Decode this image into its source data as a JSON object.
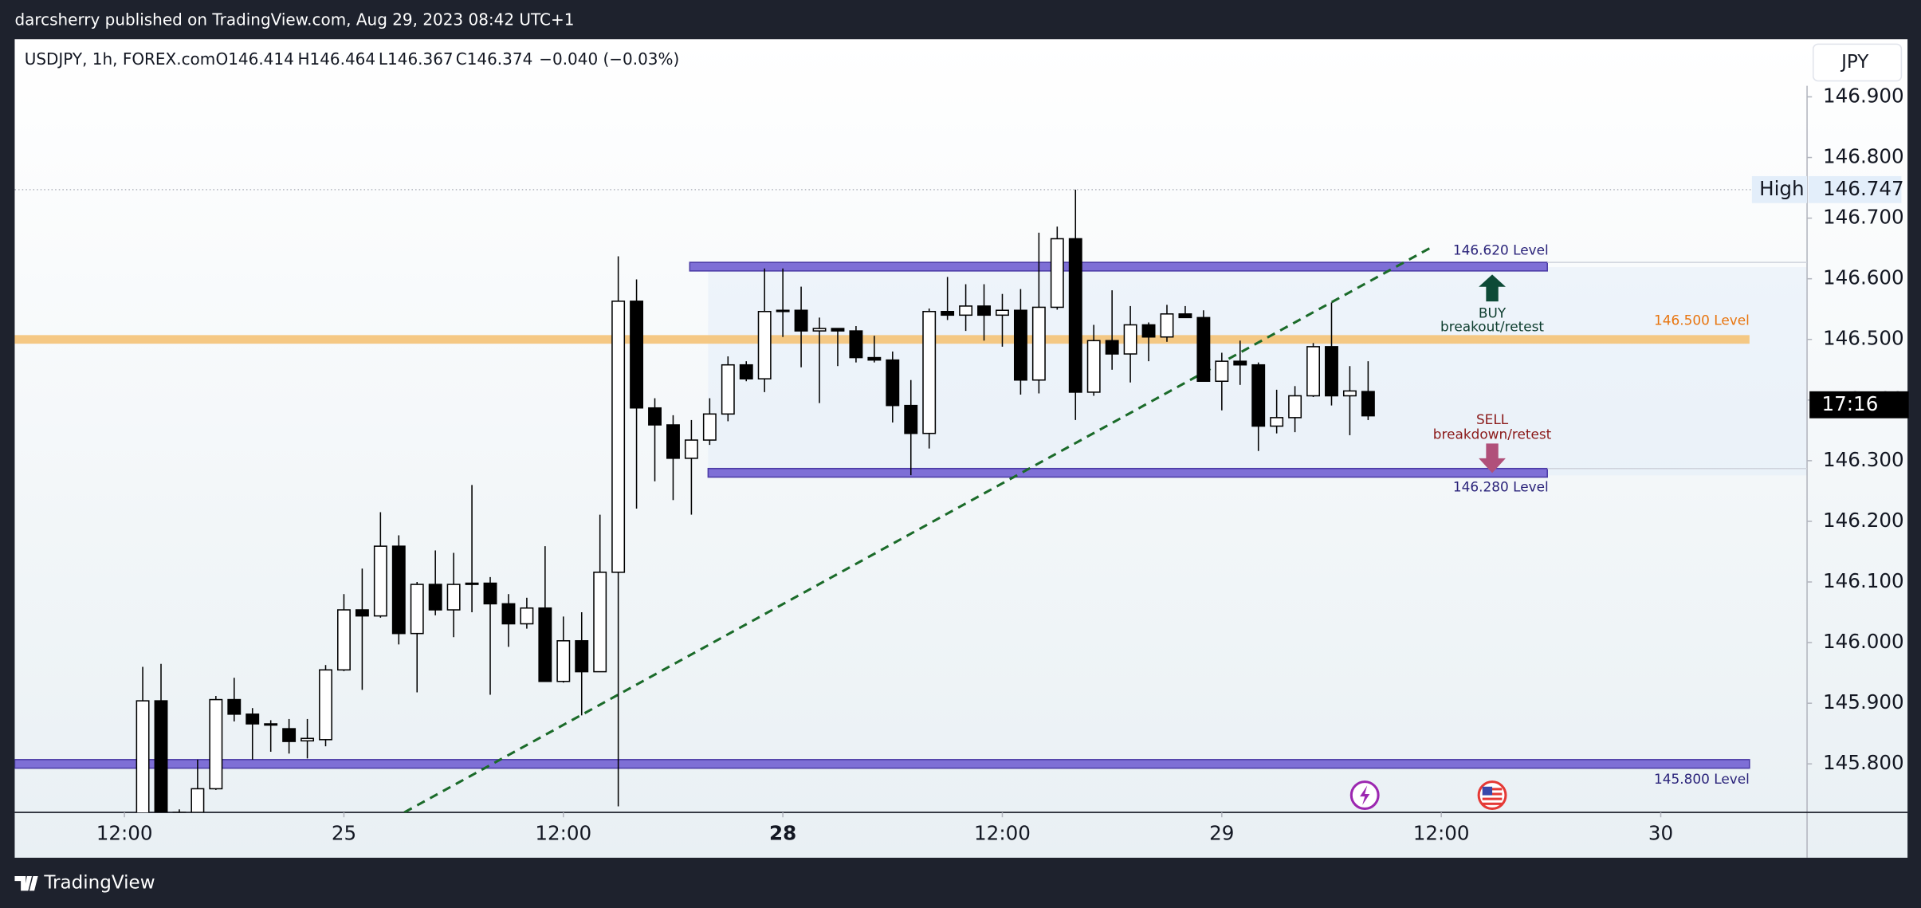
{
  "topbar": "darcsherry published on TradingView.com, Aug 29, 2023 08:42 UTC+1",
  "footer": "TradingView",
  "currency_button": "JPY",
  "chart_data": {
    "type": "candlestick",
    "legend": {
      "symbol": "USDJPY, 1h, FOREX.com",
      "open": "O146.414",
      "high": "H146.464",
      "low": "L146.367",
      "close": "C146.374",
      "change": "−0.040 (−0.03%)"
    },
    "x": [
      1,
      2,
      3,
      4,
      5,
      6,
      7,
      8,
      9,
      10,
      11,
      12,
      13,
      14,
      15,
      16,
      17,
      18,
      19,
      20,
      21,
      22,
      23,
      24,
      25,
      26,
      27,
      28,
      29,
      30,
      31,
      32,
      33,
      34,
      35,
      36,
      37,
      38,
      39,
      40,
      41,
      42,
      43,
      44,
      45,
      46,
      47,
      48,
      49,
      50,
      51,
      52,
      53,
      54,
      55,
      56,
      57,
      58,
      59,
      60,
      61,
      62,
      63,
      64,
      65,
      66,
      67,
      68
    ],
    "open": [
      145.71,
      145.904,
      145.72,
      145.72,
      145.759,
      145.906,
      145.882,
      145.866,
      145.858,
      145.838,
      145.84,
      145.955,
      146.054,
      146.044,
      146.159,
      146.015,
      146.096,
      146.054,
      146.096,
      146.098,
      146.064,
      146.031,
      146.057,
      145.936,
      146.003,
      145.952,
      146.116,
      146.563,
      146.387,
      146.359,
      146.304,
      146.334,
      146.377,
      146.458,
      146.435,
      146.546,
      146.548,
      146.514,
      146.518,
      146.514,
      146.47,
      146.466,
      146.391,
      146.345,
      146.546,
      146.54,
      146.555,
      146.54,
      146.548,
      146.433,
      146.553,
      146.666,
      146.413,
      146.498,
      146.476,
      146.524,
      146.504,
      146.542,
      146.536,
      146.431,
      146.464,
      146.458,
      146.357,
      146.371,
      146.407,
      146.488,
      146.407,
      146.414
    ],
    "high": [
      145.96,
      145.965,
      145.725,
      145.807,
      145.912,
      145.942,
      145.892,
      145.872,
      145.874,
      145.874,
      145.963,
      146.08,
      146.122,
      146.215,
      146.177,
      146.1,
      146.152,
      146.148,
      146.26,
      146.108,
      146.08,
      146.074,
      146.159,
      146.043,
      146.05,
      146.211,
      146.637,
      146.599,
      146.403,
      146.375,
      146.367,
      146.403,
      146.472,
      146.464,
      146.617,
      146.617,
      146.587,
      146.536,
      146.518,
      146.522,
      146.506,
      146.48,
      146.433,
      146.551,
      146.603,
      146.591,
      146.591,
      146.575,
      146.583,
      146.676,
      146.686,
      146.747,
      146.524,
      146.581,
      146.555,
      146.528,
      146.557,
      146.555,
      146.548,
      146.478,
      146.498,
      146.462,
      146.417,
      146.423,
      146.494,
      146.561,
      146.456,
      146.464
    ],
    "low": [
      145.69,
      145.69,
      145.7,
      145.7,
      145.757,
      145.87,
      145.807,
      145.82,
      145.817,
      145.809,
      145.829,
      145.953,
      145.922,
      146.041,
      145.997,
      145.918,
      146.045,
      146.009,
      146.05,
      145.914,
      145.993,
      146.023,
      145.936,
      145.934,
      145.88,
      145.952,
      145.73,
      146.221,
      146.266,
      146.235,
      146.211,
      146.326,
      146.365,
      146.431,
      146.413,
      146.504,
      146.454,
      146.395,
      146.456,
      146.462,
      146.462,
      146.363,
      146.276,
      146.32,
      146.532,
      146.514,
      146.498,
      146.488,
      146.409,
      146.411,
      146.549,
      146.367,
      146.407,
      146.45,
      146.429,
      146.464,
      146.496,
      146.536,
      146.431,
      146.383,
      146.425,
      146.316,
      146.345,
      146.347,
      146.405,
      146.391,
      146.342,
      146.367
    ],
    "close": [
      145.904,
      145.71,
      145.718,
      145.759,
      145.906,
      145.882,
      145.866,
      145.864,
      145.837,
      145.842,
      145.955,
      146.054,
      146.044,
      146.159,
      146.015,
      146.096,
      146.054,
      146.096,
      146.098,
      146.064,
      146.031,
      146.057,
      145.936,
      146.003,
      145.952,
      146.116,
      146.563,
      146.387,
      146.359,
      146.304,
      146.334,
      146.377,
      146.458,
      146.435,
      146.546,
      146.548,
      146.514,
      146.518,
      146.514,
      146.47,
      146.466,
      146.391,
      146.345,
      146.546,
      146.54,
      146.555,
      146.54,
      146.548,
      146.433,
      146.553,
      146.666,
      146.413,
      146.498,
      146.476,
      146.524,
      146.504,
      146.542,
      146.536,
      146.431,
      146.464,
      146.458,
      146.357,
      146.371,
      146.407,
      146.488,
      146.407,
      146.415,
      146.374
    ],
    "up_color": "#ffffff",
    "down_color": "#000000",
    "xlim": [
      -6,
      92
    ],
    "xticks": [
      {
        "value": 0,
        "label": "12:00"
      },
      {
        "value": 12,
        "label": "25"
      },
      {
        "value": 24,
        "label": "12:00"
      },
      {
        "value": 36,
        "label": "28"
      },
      {
        "value": 48,
        "label": "12:00"
      },
      {
        "value": 60,
        "label": "29"
      },
      {
        "value": 72,
        "label": "12:00"
      },
      {
        "value": 84,
        "label": "30"
      }
    ],
    "ylim": [
      145.72,
      146.995
    ],
    "yticks": [
      {
        "value": 145.8,
        "label": "145.800"
      },
      {
        "value": 145.9,
        "label": "145.900"
      },
      {
        "value": 146.0,
        "label": "146.000"
      },
      {
        "value": 146.1,
        "label": "146.100"
      },
      {
        "value": 146.2,
        "label": "146.200"
      },
      {
        "value": 146.3,
        "label": "146.300"
      },
      {
        "value": 146.4,
        "label": "146.400"
      },
      {
        "value": 146.5,
        "label": "146.500"
      },
      {
        "value": 146.6,
        "label": "146.600"
      },
      {
        "value": 146.7,
        "label": "146.700"
      },
      {
        "value": 146.8,
        "label": "146.800"
      },
      {
        "value": 146.9,
        "label": "146.900"
      }
    ],
    "levels": [
      {
        "value": 146.62,
        "label": "146.620 Level",
        "color": "#7e6fd6",
        "label_color": "#2a237a"
      },
      {
        "value": 146.5,
        "label": "146.500 Level",
        "color": "#f5bf6e",
        "label_color": "#e8750f"
      },
      {
        "value": 146.28,
        "label": "146.280 Level",
        "color": "#7e6fd6",
        "label_color": "#2a237a"
      },
      {
        "value": 145.8,
        "label": "145.800 Level",
        "color": "#7e6fd6",
        "label_color": "#2a237a"
      }
    ],
    "high_marker": {
      "label": "High",
      "value": 146.747,
      "value_label": "146.747"
    },
    "countdown": "17:16",
    "annotations": {
      "buy": "BUY",
      "buy_note": "breakout/retest",
      "sell": "SELL",
      "sell_note": "breakdown/retest"
    }
  }
}
